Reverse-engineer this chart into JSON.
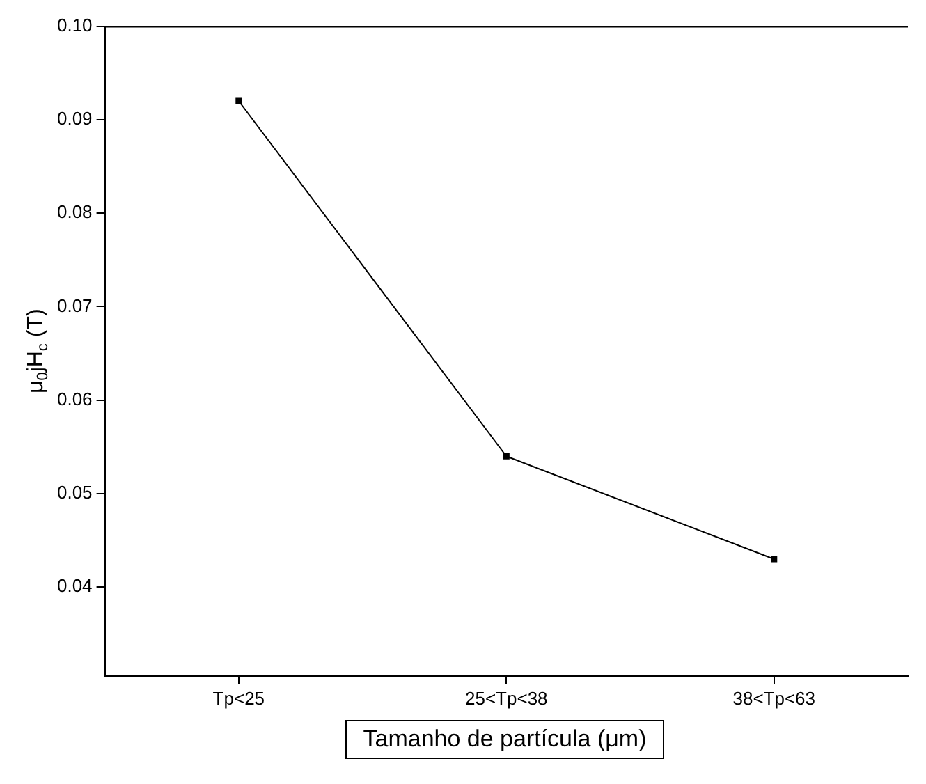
{
  "chart_data": {
    "type": "line",
    "xlabel": "Tamanho de partícula (μm)",
    "ylabel": "μ$_{0}$jH$_{c}$ (T)",
    "categories": [
      "Tp<25",
      "25<Tp<38",
      "38<Tp<63"
    ],
    "series": [
      {
        "color": "#000000",
        "values": [
          0.092,
          0.054,
          0.043
        ]
      }
    ],
    "ylim": [
      0.0305,
      0.1
    ],
    "yticks": [
      {
        "value": 0.04,
        "label": "0.04"
      },
      {
        "value": 0.05,
        "label": "0.05"
      },
      {
        "value": 0.06,
        "label": "0.06"
      },
      {
        "value": 0.07,
        "label": "0.07"
      },
      {
        "value": 0.08,
        "label": "0.08"
      },
      {
        "value": 0.09,
        "label": "0.09"
      },
      {
        "value": 0.1,
        "label": "0.10"
      }
    ],
    "grid": false,
    "legend": false,
    "marker": "square",
    "line_style": "solid"
  }
}
